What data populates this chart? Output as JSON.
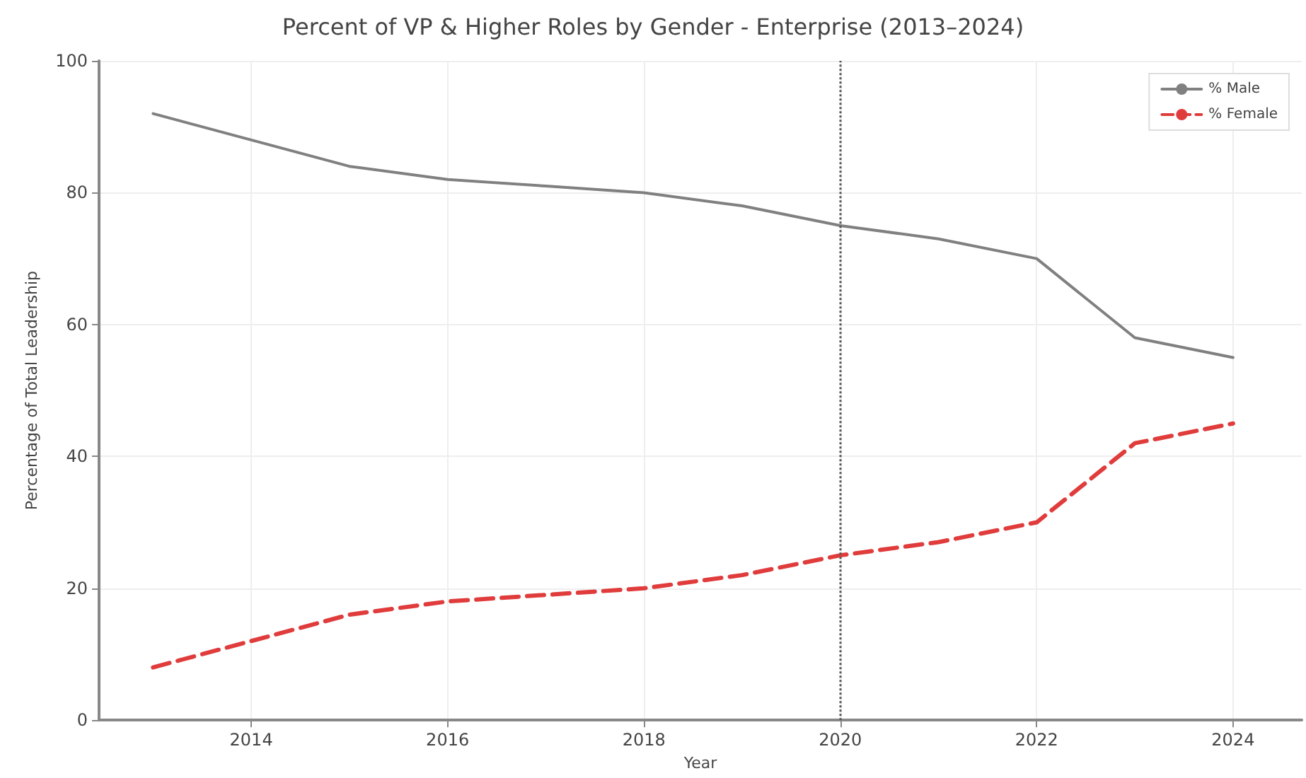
{
  "chart_data": {
    "type": "line",
    "title": "Percent of VP & Higher Roles by Gender - Enterprise (2013–2024)",
    "xlabel": "Year",
    "ylabel": "Percentage of Total Leadership",
    "x": [
      2013,
      2014,
      2015,
      2016,
      2017,
      2018,
      2019,
      2020,
      2021,
      2022,
      2023,
      2024
    ],
    "series": [
      {
        "name": "% Male",
        "color": "#808080",
        "line_style": "solid",
        "values": [
          92,
          88,
          84,
          82,
          81,
          80,
          78,
          75,
          73,
          70,
          58,
          55
        ]
      },
      {
        "name": "% Female",
        "color": "#e03c3c",
        "line_style": "dashed",
        "values": [
          8,
          12,
          16,
          18,
          19,
          20,
          22,
          25,
          27,
          30,
          42,
          45
        ]
      }
    ],
    "xlim": [
      2012.45,
      2024.7
    ],
    "xticks": [
      2014,
      2016,
      2018,
      2020,
      2022,
      2024
    ],
    "ylim": [
      0,
      100
    ],
    "yticks": [
      0,
      20,
      40,
      60,
      80,
      100
    ],
    "ref_lines": [
      {
        "axis": "x",
        "value": 2020,
        "color": "#555555",
        "line_style": "dotted"
      }
    ],
    "grid": true,
    "legend": "top right",
    "marker": "none"
  }
}
